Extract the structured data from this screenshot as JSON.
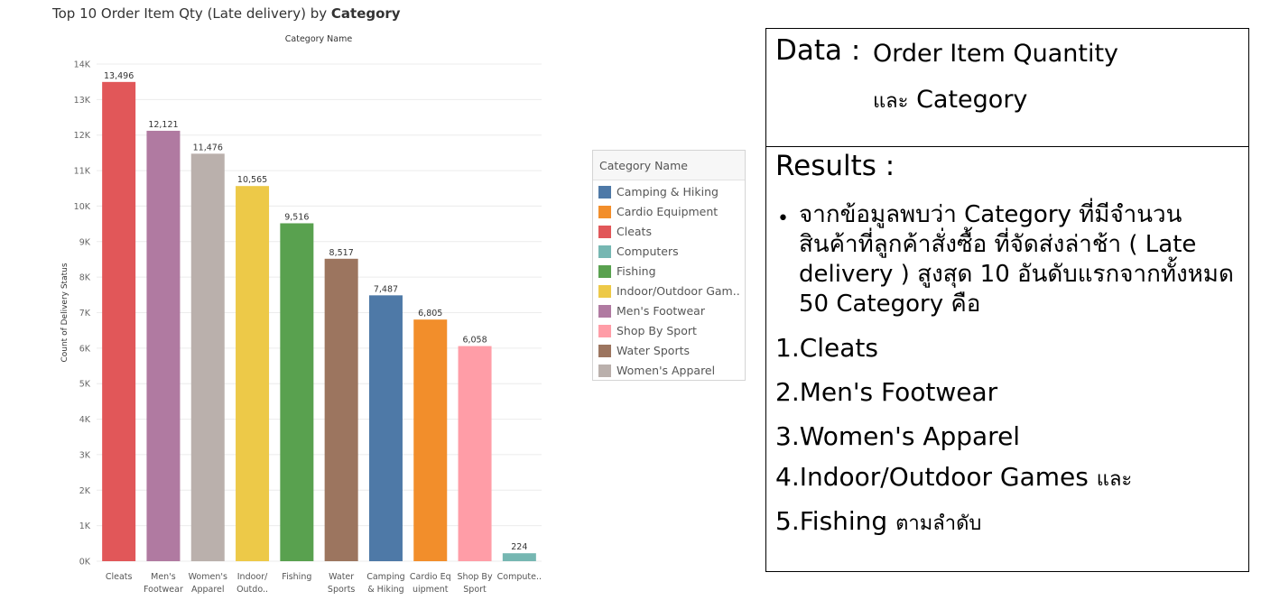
{
  "chart_data": {
    "type": "bar",
    "title": "Top 10 Order Item  Qty  (Late delivery) by Category",
    "subtitle": "Category Name",
    "ylabel": "Count of Delivery Status",
    "ylim": [
      0,
      14000
    ],
    "yticks": [
      "0K",
      "1K",
      "2K",
      "3K",
      "4K",
      "5K",
      "6K",
      "7K",
      "8K",
      "9K",
      "10K",
      "11K",
      "12K",
      "13K",
      "14K"
    ],
    "categories": [
      "Cleats",
      "Men's Footwear",
      "Women's Apparel",
      "Indoor/ Outdo..",
      "Fishing",
      "Water Sports",
      "Camping & Hiking",
      "Cardio Eq uipment",
      "Shop By Sport",
      "Compute.."
    ],
    "category_lines": [
      [
        "Cleats"
      ],
      [
        "Men's",
        "Footwear"
      ],
      [
        "Women's",
        "Apparel"
      ],
      [
        "Indoor/",
        "Outdo.."
      ],
      [
        "Fishing"
      ],
      [
        "Water",
        "Sports"
      ],
      [
        "Camping",
        "& Hiking"
      ],
      [
        "Cardio Eq",
        "uipment"
      ],
      [
        "Shop By",
        "Sport"
      ],
      [
        "Compute.."
      ]
    ],
    "values": [
      13496,
      12121,
      11476,
      10565,
      9516,
      8517,
      7487,
      6805,
      6058,
      224
    ],
    "value_labels": [
      "13,496",
      "12,121",
      "11,476",
      "10,565",
      "9,516",
      "8,517",
      "7,487",
      "6,805",
      "6,058",
      "224"
    ],
    "colors": [
      "#e15759",
      "#b07aa1",
      "#bab0ac",
      "#edc948",
      "#59a14f",
      "#9c755f",
      "#4e79a7",
      "#f28e2b",
      "#ff9da7",
      "#76b7b2"
    ],
    "grid": true,
    "legend_position": "right"
  },
  "title_parts": {
    "a": "Top 10 Order Item  Qty  (Late delivery) by ",
    "b": "Category"
  },
  "legend": {
    "title": "Category Name",
    "items": [
      {
        "label": "Camping & Hiking",
        "color": "#4e79a7"
      },
      {
        "label": "Cardio Equipment",
        "color": "#f28e2b"
      },
      {
        "label": "Cleats",
        "color": "#e15759"
      },
      {
        "label": "Computers",
        "color": "#76b7b2"
      },
      {
        "label": "Fishing",
        "color": "#59a14f"
      },
      {
        "label": "Indoor/Outdoor Gam..",
        "color": "#edc948"
      },
      {
        "label": "Men's Footwear",
        "color": "#b07aa1"
      },
      {
        "label": "Shop By Sport",
        "color": "#ff9da7"
      },
      {
        "label": "Water Sports",
        "color": "#9c755f"
      },
      {
        "label": "Women's Apparel",
        "color": "#bab0ac"
      }
    ]
  },
  "panel": {
    "data_label": "Data :",
    "data_value_1": "Order Item Quantity",
    "data_value_2_th": "และ",
    "data_value_2": " Category",
    "results_label": "Results :",
    "bullet": "•",
    "finding": "จากข้อมูลพบว่า Category ที่มีจำนวนสินค้าที่ลูกค้าสั่งซื้อ ที่จัดส่งล่าช้า ( Late delivery ) สูงสุด 10 อันดับแรกจากทั้งหมด 50 Category  คือ",
    "ranks": [
      {
        "text": "1.Cleats",
        "suffix": ""
      },
      {
        "text": "2.Men's Footwear",
        "suffix": ""
      },
      {
        "text": "3.Women's Apparel",
        "suffix": ""
      },
      {
        "text": "4.Indoor/Outdoor Games ",
        "suffix": "และ"
      },
      {
        "text": "5.Fishing ",
        "suffix": "ตามลำดับ"
      }
    ]
  }
}
